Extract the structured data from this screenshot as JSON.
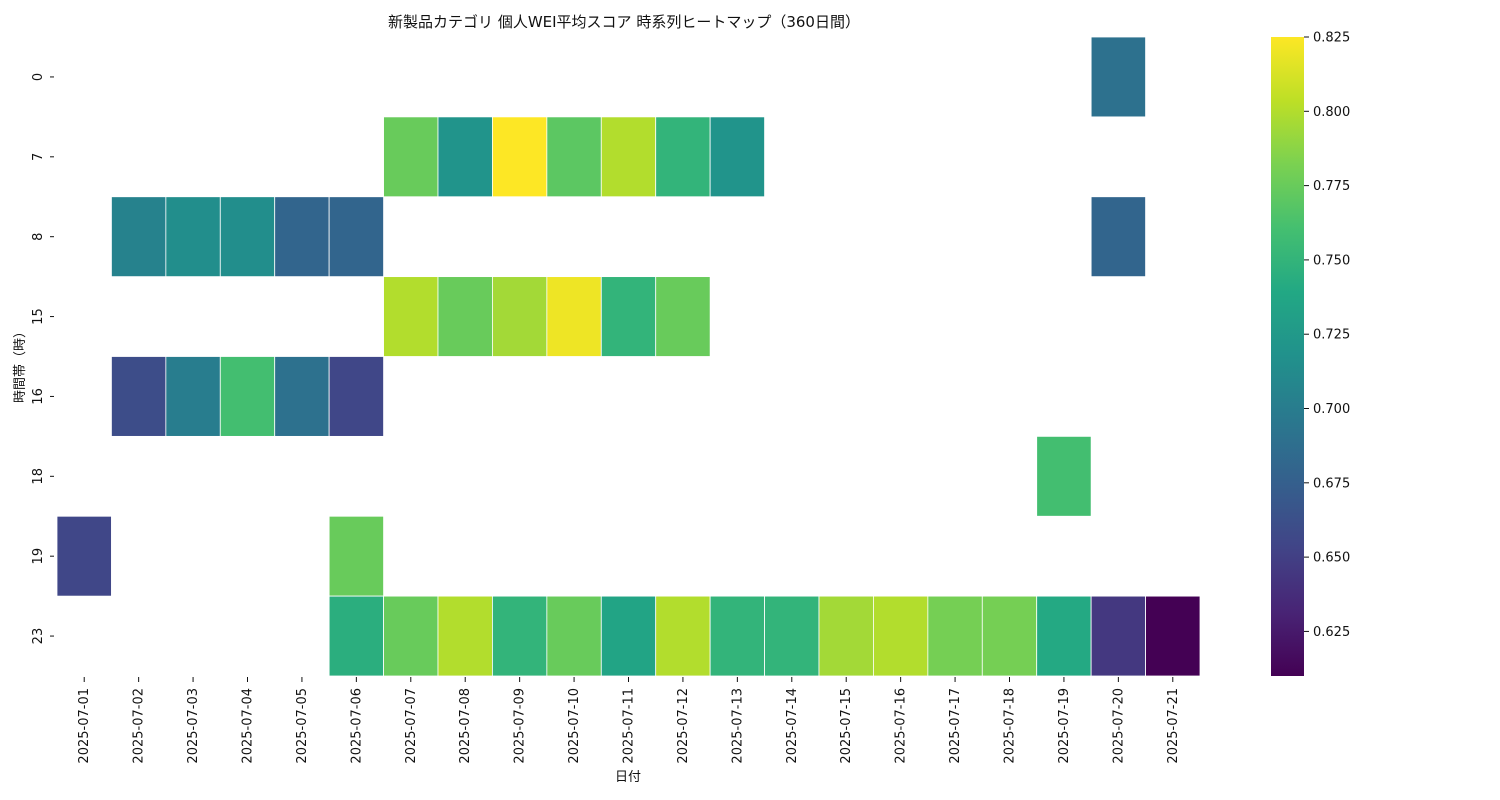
{
  "chart_data": {
    "type": "heatmap",
    "title": "新製品カテゴリ 個人WEI平均スコア 時系列ヒートマップ（360日間）",
    "xlabel": "日付",
    "ylabel": "時間帯（時）",
    "x": [
      "2025-07-01",
      "2025-07-02",
      "2025-07-03",
      "2025-07-04",
      "2025-07-05",
      "2025-07-06",
      "2025-07-07",
      "2025-07-08",
      "2025-07-09",
      "2025-07-10",
      "2025-07-11",
      "2025-07-12",
      "2025-07-13",
      "2025-07-14",
      "2025-07-15",
      "2025-07-16",
      "2025-07-17",
      "2025-07-18",
      "2025-07-19",
      "2025-07-20",
      "2025-07-21"
    ],
    "y": [
      "0",
      "7",
      "8",
      "15",
      "16",
      "18",
      "19",
      "23"
    ],
    "values": [
      [
        null,
        null,
        null,
        null,
        null,
        null,
        null,
        null,
        null,
        null,
        null,
        null,
        null,
        null,
        null,
        null,
        null,
        null,
        null,
        0.69,
        null
      ],
      [
        null,
        null,
        null,
        null,
        null,
        null,
        0.775,
        0.72,
        0.825,
        0.77,
        0.8,
        0.75,
        0.72,
        null,
        null,
        null,
        null,
        null,
        null,
        null,
        null
      ],
      [
        null,
        0.705,
        0.715,
        0.715,
        0.68,
        0.68,
        null,
        null,
        null,
        null,
        null,
        null,
        null,
        null,
        null,
        null,
        null,
        null,
        null,
        0.68,
        null
      ],
      [
        null,
        null,
        null,
        null,
        null,
        null,
        0.8,
        0.775,
        0.795,
        0.82,
        0.75,
        0.775,
        null,
        null,
        null,
        null,
        null,
        null,
        null,
        null,
        null
      ],
      [
        null,
        0.66,
        0.7,
        0.76,
        0.69,
        0.655,
        null,
        null,
        null,
        null,
        null,
        null,
        null,
        null,
        null,
        null,
        null,
        null,
        null,
        null,
        null
      ],
      [
        null,
        null,
        null,
        null,
        null,
        null,
        null,
        null,
        null,
        null,
        null,
        null,
        null,
        null,
        null,
        null,
        null,
        null,
        0.76,
        null,
        null
      ],
      [
        0.655,
        null,
        null,
        null,
        null,
        0.775,
        null,
        null,
        null,
        null,
        null,
        null,
        null,
        null,
        null,
        null,
        null,
        null,
        null,
        null,
        null
      ],
      [
        null,
        null,
        null,
        null,
        null,
        0.745,
        0.775,
        0.8,
        0.75,
        0.775,
        0.735,
        0.8,
        0.75,
        0.75,
        0.795,
        0.8,
        0.78,
        0.78,
        0.74,
        0.645,
        0.61
      ]
    ],
    "colorbar": {
      "colormap": "viridis",
      "range": [
        0.61,
        0.825
      ],
      "ticks": [
        "0.625",
        "0.650",
        "0.675",
        "0.700",
        "0.725",
        "0.750",
        "0.775",
        "0.800",
        "0.825"
      ]
    },
    "grid": false,
    "legend": "colorbar-right"
  }
}
